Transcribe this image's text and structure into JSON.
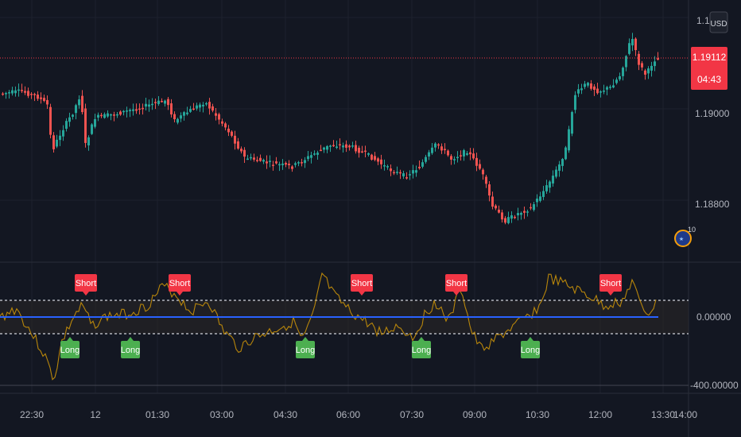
{
  "price_axis": {
    "currency": "USD",
    "top_label": "1.1",
    "labels": [
      {
        "value": 1.19,
        "text": "1.19000"
      },
      {
        "value": 1.188,
        "text": "1.18800"
      }
    ],
    "current_price": "1.19112",
    "current_price_value": 1.19112,
    "countdown": "04:43"
  },
  "indicator_axis": {
    "labels": [
      {
        "value": 0,
        "text": "0.00000"
      },
      {
        "value": -400,
        "text": "-400.00000"
      }
    ],
    "upper_band": 100,
    "lower_band": -100
  },
  "time_axis": {
    "labels": [
      "22:30",
      "12",
      "01:30",
      "03:00",
      "04:30",
      "06:00",
      "07:30",
      "09:00",
      "10:30",
      "12:00",
      "13:30",
      "14:00"
    ]
  },
  "signals": [
    {
      "label": "Short",
      "type": "short"
    },
    {
      "label": "Short",
      "type": "short"
    },
    {
      "label": "Short",
      "type": "short"
    },
    {
      "label": "Short",
      "type": "short"
    },
    {
      "label": "Short",
      "type": "short"
    },
    {
      "label": "Long",
      "type": "long"
    },
    {
      "label": "Long",
      "type": "long"
    },
    {
      "label": "Long",
      "type": "long"
    },
    {
      "label": "Long",
      "type": "long"
    },
    {
      "label": "Long",
      "type": "long"
    }
  ],
  "overlay_badge_text": "10",
  "colors": {
    "background": "#131722",
    "bull": "#26a69a",
    "bear": "#ef5350",
    "osc_line": "#b8860b",
    "zero_line": "#2962ff",
    "short_label": "#f23645",
    "long_label": "#4caf50",
    "price_line": "#f23645",
    "grid": "#1e222d",
    "axis_text": "#b2b5be"
  }
}
